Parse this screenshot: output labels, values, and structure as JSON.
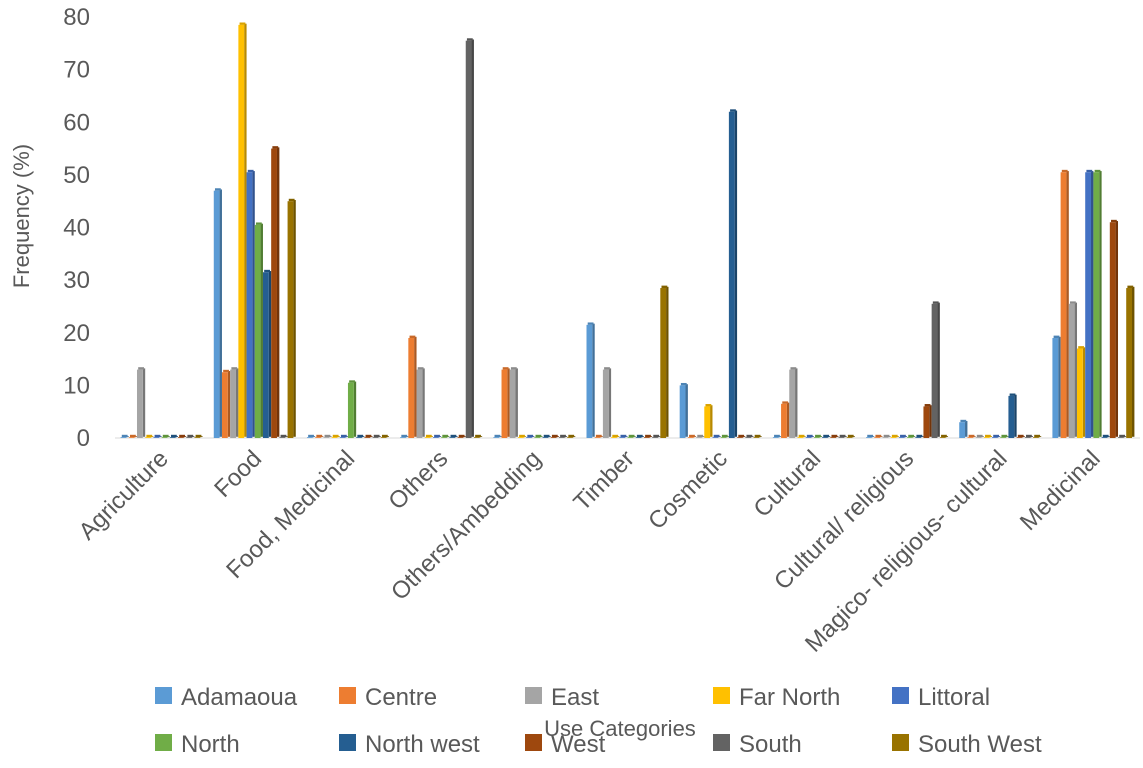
{
  "chart_data": {
    "type": "bar",
    "title": "",
    "xlabel": "Use Categories",
    "ylabel": "Frequency (%)",
    "ylim": [
      0,
      80
    ],
    "yticks": [
      0,
      10,
      20,
      30,
      40,
      50,
      60,
      70,
      80
    ],
    "grid": false,
    "legend_position": "bottom",
    "categories": [
      "Agriculture",
      "Food",
      "Food, Medicinal",
      "Others",
      "Others/Ambedding",
      "Timber",
      "Cosmetic",
      "Cultural",
      "Cultural/ religious",
      "Magico- religious- cultural",
      "Medicinal"
    ],
    "series": [
      {
        "name": "Adamaoua",
        "color": "#5B9BD5",
        "values": [
          0,
          47,
          0,
          0,
          0,
          21.5,
          10,
          0,
          0,
          3,
          19
        ]
      },
      {
        "name": "Centre",
        "color": "#ED7D31",
        "values": [
          0,
          12.5,
          0,
          19,
          13,
          0,
          0,
          6.5,
          0,
          0,
          50.5
        ]
      },
      {
        "name": "East",
        "color": "#A5A5A5",
        "values": [
          13,
          13,
          0,
          13,
          13,
          13,
          0,
          13,
          0,
          0,
          25.5
        ]
      },
      {
        "name": "Far North",
        "color": "#FFC000",
        "values": [
          0,
          78.5,
          0,
          0,
          0,
          0,
          6,
          0,
          0,
          0,
          17
        ]
      },
      {
        "name": "Littoral",
        "color": "#4472C4",
        "values": [
          0,
          50.5,
          0,
          0,
          0,
          0,
          0,
          0,
          0,
          0,
          50.5
        ]
      },
      {
        "name": "North",
        "color": "#70AD47",
        "values": [
          0,
          40.5,
          10.5,
          0,
          0,
          0,
          0,
          0,
          0,
          0,
          50.5
        ]
      },
      {
        "name": "North west",
        "color": "#255E91",
        "values": [
          0,
          31.5,
          0,
          0,
          0,
          0,
          62,
          0,
          0,
          8,
          0
        ]
      },
      {
        "name": "West",
        "color": "#9E480E",
        "values": [
          0,
          55,
          0,
          0,
          0,
          0,
          0,
          0,
          6,
          0,
          41
        ]
      },
      {
        "name": "South",
        "color": "#636363",
        "values": [
          0,
          0,
          0,
          75.5,
          0,
          0,
          0,
          0,
          25.5,
          0,
          0
        ]
      },
      {
        "name": "South West",
        "color": "#997300",
        "values": [
          0,
          45,
          0,
          0,
          0,
          28.5,
          0,
          0,
          0,
          0,
          28.5
        ]
      }
    ]
  }
}
